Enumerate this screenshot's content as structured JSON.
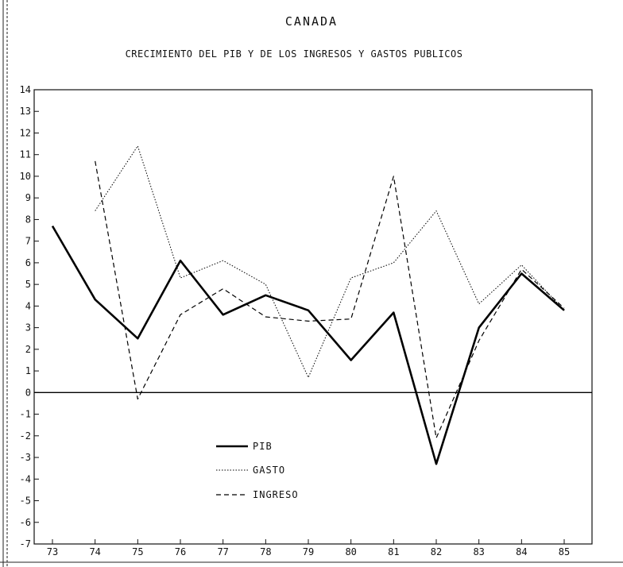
{
  "chart_data": {
    "type": "line",
    "title": "CANADA",
    "subtitle": "CRECIMIENTO DEL PIB Y DE LOS INGRESOS Y GASTOS PUBLICOS",
    "xlabel": "",
    "ylabel": "",
    "categories": [
      "73",
      "74",
      "75",
      "76",
      "77",
      "78",
      "79",
      "80",
      "81",
      "82",
      "83",
      "84",
      "85"
    ],
    "ylim": [
      -7,
      14
    ],
    "yticks": [
      "-7",
      "-6",
      "-5",
      "-4",
      "-3",
      "-2",
      "-1",
      "0",
      "1",
      "2",
      "3",
      "4",
      "5",
      "6",
      "7",
      "8",
      "9",
      "10",
      "11",
      "12",
      "13",
      "14"
    ],
    "grid": false,
    "legend_position": "lower-left",
    "series": [
      {
        "name": "PIB",
        "style": "solid",
        "color": "#000000",
        "values": [
          7.7,
          4.3,
          2.5,
          6.1,
          3.6,
          4.5,
          3.8,
          1.5,
          3.7,
          -3.3,
          3.0,
          5.5,
          3.8
        ]
      },
      {
        "name": "GASTO",
        "style": "dotted",
        "color": "#000000",
        "values": [
          null,
          8.4,
          11.4,
          5.3,
          6.1,
          5.0,
          0.7,
          5.3,
          6.0,
          8.4,
          4.1,
          5.9,
          3.8
        ]
      },
      {
        "name": "INGRESO",
        "style": "dashed",
        "color": "#000000",
        "values": [
          null,
          10.7,
          -0.3,
          3.6,
          4.8,
          3.5,
          3.3,
          3.4,
          10.0,
          -2.1,
          2.4,
          5.7,
          3.9
        ]
      }
    ]
  }
}
